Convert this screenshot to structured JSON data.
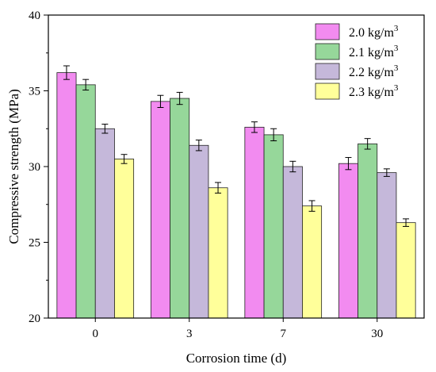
{
  "chart_data": {
    "type": "bar",
    "title": "",
    "xlabel": "Corrosion time (d)",
    "ylabel": "Compressive strength (MPa)",
    "categories": [
      "0",
      "3",
      "7",
      "30"
    ],
    "ylim": [
      20,
      40
    ],
    "yticks": [
      "20",
      "25",
      "30",
      "35",
      "40"
    ],
    "legend_position": "top-right",
    "series": [
      {
        "name": "2.0 kg/m",
        "name_sup": "3",
        "color": "#f28bf0",
        "values": [
          36.2,
          34.3,
          32.6,
          30.2
        ],
        "errors": [
          0.45,
          0.4,
          0.35,
          0.4
        ]
      },
      {
        "name": "2.1 kg/m",
        "name_sup": "3",
        "color": "#96d79a",
        "values": [
          35.4,
          34.5,
          32.1,
          31.5
        ],
        "errors": [
          0.35,
          0.4,
          0.4,
          0.35
        ]
      },
      {
        "name": "2.2 kg/m",
        "name_sup": "3",
        "color": "#c5b8da",
        "values": [
          32.5,
          31.4,
          30.0,
          29.6
        ],
        "errors": [
          0.3,
          0.35,
          0.35,
          0.25
        ]
      },
      {
        "name": "2.3 kg/m",
        "name_sup": "3",
        "color": "#ffff9a",
        "values": [
          30.5,
          28.6,
          27.4,
          26.3
        ],
        "errors": [
          0.3,
          0.35,
          0.35,
          0.25
        ]
      }
    ]
  }
}
